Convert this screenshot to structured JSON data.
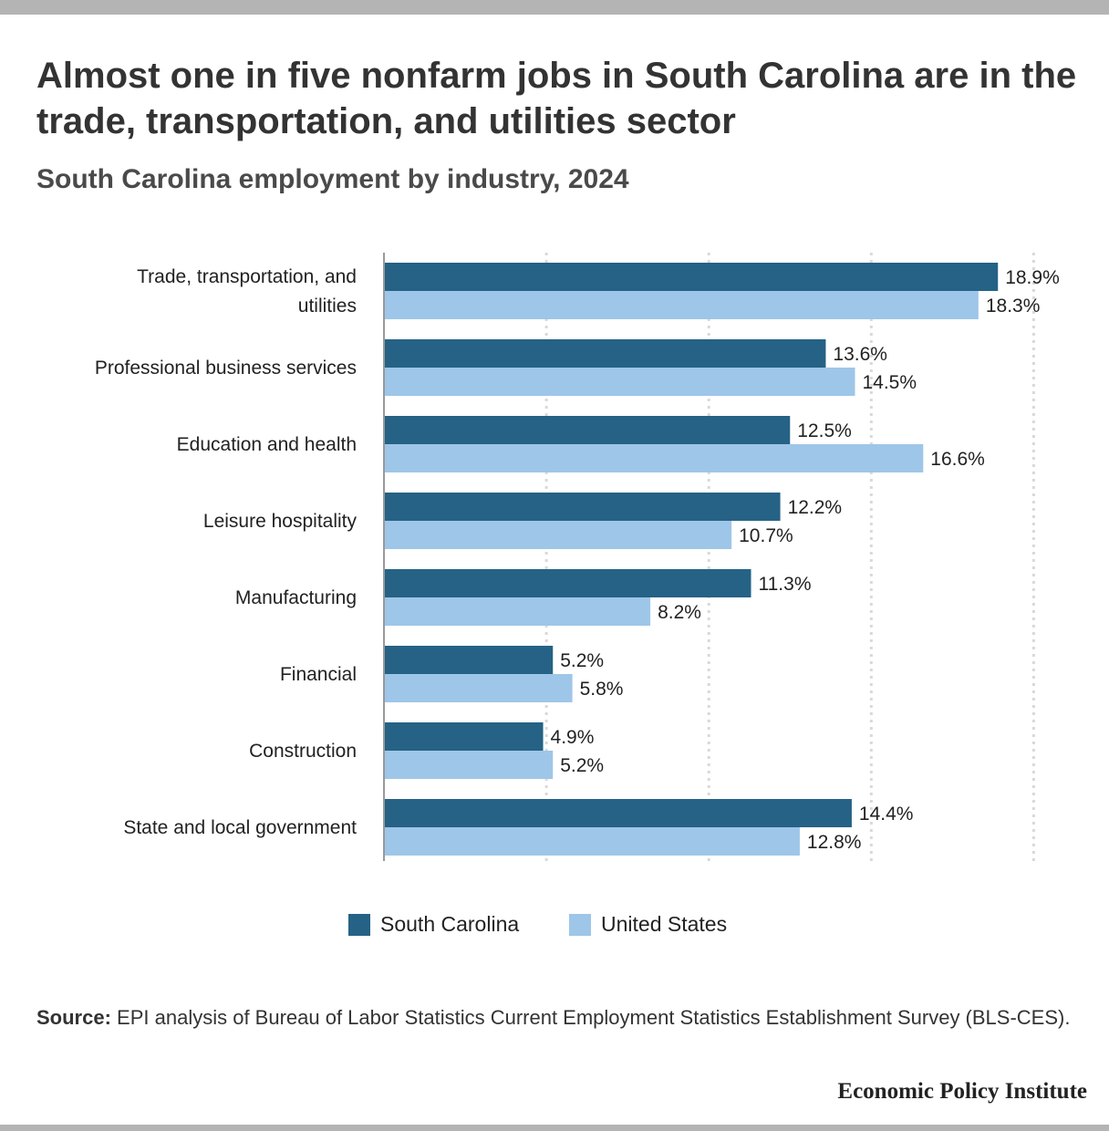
{
  "header": {
    "title": "Almost one in five nonfarm jobs in South Carolina are in the trade, transportation, and utilities sector",
    "subtitle": "South Carolina employment by industry, 2024"
  },
  "footer": {
    "source_label": "Source:",
    "source_text": "EPI analysis of Bureau of Labor Statistics Current Employment Statistics Establishment Survey (BLS-CES).",
    "brand": "Economic Policy Institute"
  },
  "colors": {
    "south_carolina": "#256285",
    "united_states": "#9ec6e8",
    "grid": "#d9d9d9",
    "axis": "#999999"
  },
  "chart_data": {
    "type": "bar",
    "orientation": "horizontal",
    "categories": [
      [
        "Trade, transportation, and",
        "utilities"
      ],
      [
        "Professional business services"
      ],
      [
        "Education and health"
      ],
      [
        "Leisure hospitality"
      ],
      [
        "Manufacturing"
      ],
      [
        "Financial"
      ],
      [
        "Construction"
      ],
      [
        "State and local government"
      ]
    ],
    "series": [
      {
        "name": "South Carolina",
        "values": [
          18.9,
          13.6,
          12.5,
          12.2,
          11.3,
          5.2,
          4.9,
          14.4
        ],
        "labels": [
          "18.9%",
          "13.6%",
          "12.5%",
          "12.2%",
          "11.3%",
          "5.2%",
          "4.9%",
          "14.4%"
        ]
      },
      {
        "name": "United States",
        "values": [
          18.3,
          14.5,
          16.6,
          10.7,
          8.2,
          5.8,
          5.2,
          12.8
        ],
        "labels": [
          "18.3%",
          "14.5%",
          "16.6%",
          "10.7%",
          "8.2%",
          "5.8%",
          "5.2%",
          "12.8%"
        ]
      }
    ],
    "xlim": [
      0,
      20
    ],
    "grid": true,
    "grid_style": "dotted",
    "legend_position": "bottom-center"
  }
}
